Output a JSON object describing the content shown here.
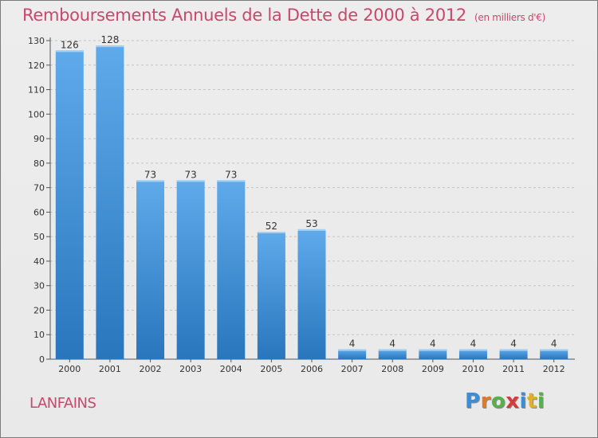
{
  "title": "Remboursements Annuels de la Dette de 2000 à 2012",
  "subtitle": "(en milliers d'€)",
  "commune": "LANFAINS",
  "logo": {
    "letters": [
      "P",
      "r",
      "o",
      "x",
      "i",
      "t",
      "i"
    ],
    "colors": [
      "#3a8ed8",
      "#e07a2a",
      "#58b04a",
      "#d83a3a",
      "#3a8ed8",
      "#e0b02a",
      "#58b04a"
    ]
  },
  "chart_data": {
    "type": "bar",
    "title": "Remboursements Annuels de la Dette de 2000 à 2012",
    "subtitle": "(en milliers d'€)",
    "categories": [
      "2000",
      "2001",
      "2002",
      "2003",
      "2004",
      "2005",
      "2006",
      "2007",
      "2008",
      "2009",
      "2010",
      "2011",
      "2012"
    ],
    "values": [
      126,
      128,
      73,
      73,
      73,
      52,
      53,
      4,
      4,
      4,
      4,
      4,
      4
    ],
    "data_labels": [
      "126",
      "128",
      "73",
      "73",
      "73",
      "52",
      "53",
      "4",
      "4",
      "4",
      "4",
      "4",
      "4"
    ],
    "ylim": [
      0,
      130
    ],
    "yticks": [
      0,
      10,
      20,
      30,
      40,
      50,
      60,
      70,
      80,
      90,
      100,
      110,
      120,
      130
    ],
    "grid": true,
    "bar_color": "#4f9fe0",
    "bar_color_dark": "#2f7fc4"
  }
}
